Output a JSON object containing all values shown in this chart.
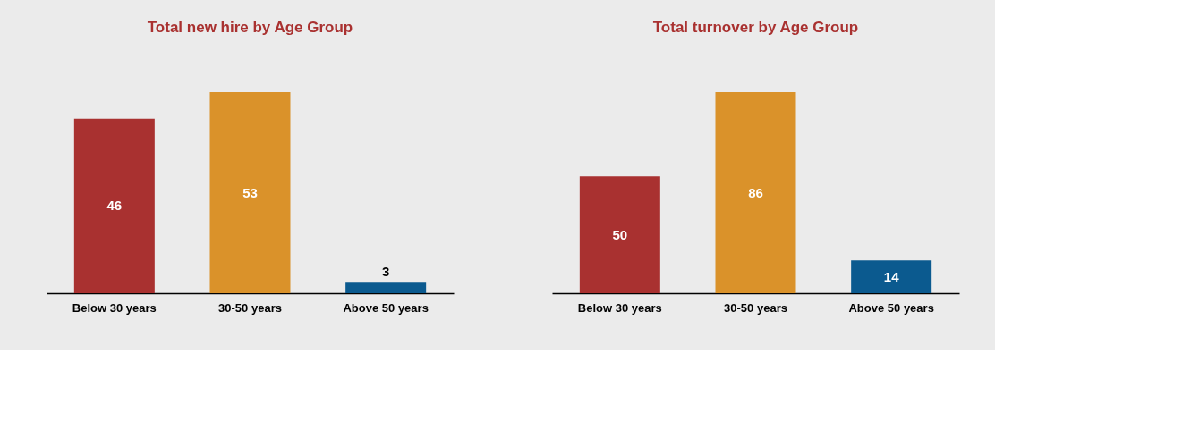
{
  "chart_data": [
    {
      "type": "bar",
      "title": "Total new hire by Age Group",
      "categories": [
        "Below 30 years",
        "30-50 years",
        "Above 50 years"
      ],
      "values": [
        46,
        53,
        3
      ],
      "colors": [
        "#a93130",
        "#da922a",
        "#0b5a8f"
      ],
      "data_labels": true,
      "grid": false,
      "legend": false
    },
    {
      "type": "bar",
      "title": "Total turnover by Age Group",
      "categories": [
        "Below 30 years",
        "30-50 years",
        "Above 50 years"
      ],
      "values": [
        50,
        86,
        14
      ],
      "colors": [
        "#a93130",
        "#da922a",
        "#0b5a8f"
      ],
      "data_labels": true,
      "grid": false,
      "legend": false
    }
  ]
}
